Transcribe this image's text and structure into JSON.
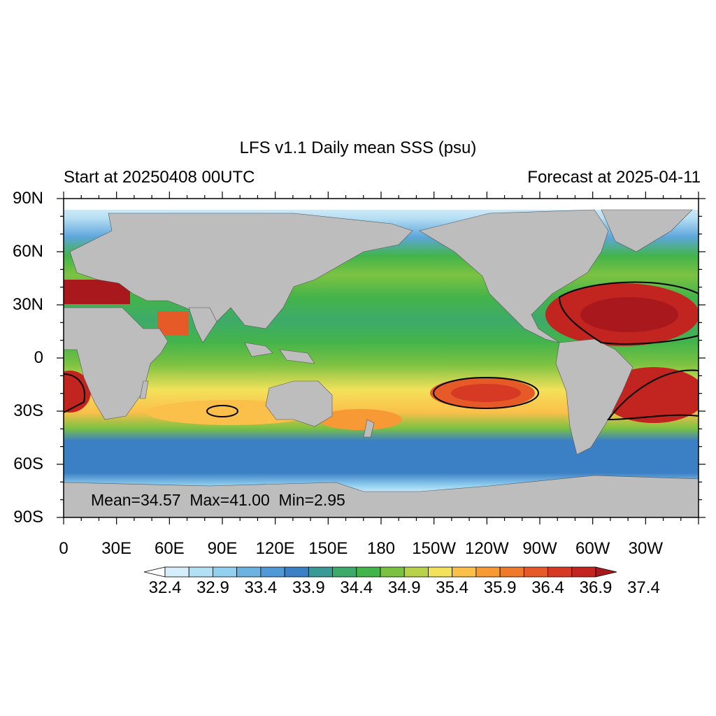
{
  "title": "LFS v1.1 Daily mean SSS (psu)",
  "subtitle_left": "Start at 20250408 00UTC",
  "subtitle_right": "Forecast at 2025-04-11",
  "stats": {
    "mean": "Mean=34.57",
    "max": "Max=41.00",
    "min": "Min=2.95"
  },
  "chart_data": {
    "type": "heatmap",
    "projection": "cylindrical equidistant",
    "lon_range": [
      0,
      360
    ],
    "lat_range": [
      -90,
      90
    ],
    "y_ticks": [
      "90N",
      "60N",
      "30N",
      "0",
      "30S",
      "60S",
      "90S"
    ],
    "x_ticks": [
      "0",
      "30E",
      "60E",
      "90E",
      "120E",
      "150E",
      "180",
      "150W",
      "120W",
      "90W",
      "60W",
      "30W"
    ],
    "colorbar": {
      "labels": [
        "32.4",
        "32.9",
        "33.4",
        "33.9",
        "34.4",
        "34.9",
        "35.4",
        "35.9",
        "36.4",
        "36.9",
        "37.4"
      ],
      "colors": [
        "#ffffff",
        "#d6eefa",
        "#b4e0f6",
        "#92d0f0",
        "#6db3e2",
        "#5098d6",
        "#3b7fc4",
        "#3a9a96",
        "#3eaa6a",
        "#43b44a",
        "#7cc242",
        "#b8d34a",
        "#f3e15a",
        "#fbc04a",
        "#f79a36",
        "#f07a2c",
        "#e65a28",
        "#d63a24",
        "#c2241f",
        "#a8181c"
      ],
      "extend": "both"
    },
    "land_color": "#bdbdbd",
    "contour_color": "#000000"
  }
}
